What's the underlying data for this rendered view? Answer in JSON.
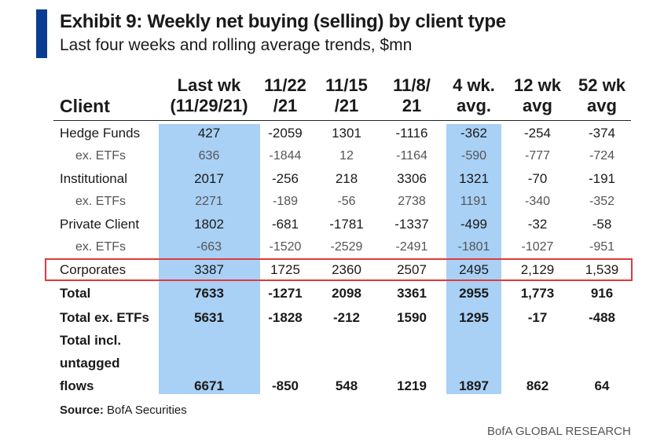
{
  "exhibit": {
    "title": "Exhibit 9: Weekly net buying (selling) by client type",
    "subtitle": "Last four weeks and rolling average trends, $mn"
  },
  "table": {
    "header": {
      "client": "Client",
      "cols": [
        [
          "Last wk",
          "(11/29/21)"
        ],
        [
          "11/22",
          "/21"
        ],
        [
          "11/15",
          "/21"
        ],
        [
          "11/8/",
          "21"
        ],
        [
          "4 wk.",
          "avg."
        ],
        [
          "12 wk",
          "avg"
        ],
        [
          "52 wk",
          "avg"
        ]
      ]
    },
    "rows": [
      {
        "label": "Hedge Funds",
        "values": [
          "427",
          "-2059",
          "1301",
          "-1116",
          "-362",
          "-254",
          "-374"
        ],
        "style": "main"
      },
      {
        "label": "ex. ETFs",
        "values": [
          "636",
          "-1844",
          "12",
          "-1164",
          "-590",
          "-777",
          "-724"
        ],
        "style": "sub"
      },
      {
        "label": "Institutional",
        "values": [
          "2017",
          "-256",
          "218",
          "3306",
          "1321",
          "-70",
          "-191"
        ],
        "style": "main"
      },
      {
        "label": "ex. ETFs",
        "values": [
          "2271",
          "-189",
          "-56",
          "2738",
          "1191",
          "-340",
          "-352"
        ],
        "style": "sub"
      },
      {
        "label": "Private Client",
        "values": [
          "1802",
          "-681",
          "-1781",
          "-1337",
          "-499",
          "-32",
          "-58"
        ],
        "style": "main"
      },
      {
        "label": "ex. ETFs",
        "values": [
          "-663",
          "-1520",
          "-2529",
          "-2491",
          "-1801",
          "-1027",
          "-951"
        ],
        "style": "sub"
      },
      {
        "label": "Corporates",
        "values": [
          "3387",
          "1725",
          "2360",
          "2507",
          "2495",
          "2,129",
          "1,539"
        ],
        "style": "main"
      },
      {
        "label": "Total",
        "values": [
          "7633",
          "-1271",
          "2098",
          "3361",
          "2955",
          "1,773",
          "916"
        ],
        "style": "bold"
      },
      {
        "label": "Total ex. ETFs",
        "values": [
          "5631",
          "-1828",
          "-212",
          "1590",
          "1295",
          "-17",
          "-488"
        ],
        "style": "bold"
      }
    ],
    "untagged": {
      "label_lines": [
        "Total incl.",
        "untagged",
        "flows"
      ],
      "values": [
        "6671",
        "-850",
        "548",
        "1219",
        "1897",
        "862",
        "64"
      ]
    }
  },
  "footer": {
    "source_label": "Source:",
    "source_value": "BofA Securities",
    "brand": "BofA GLOBAL RESEARCH"
  },
  "colors": {
    "accent": "#0a3d91",
    "highlight_column": "#a9d0f5",
    "highlight_row_border": "#e03a3a"
  }
}
